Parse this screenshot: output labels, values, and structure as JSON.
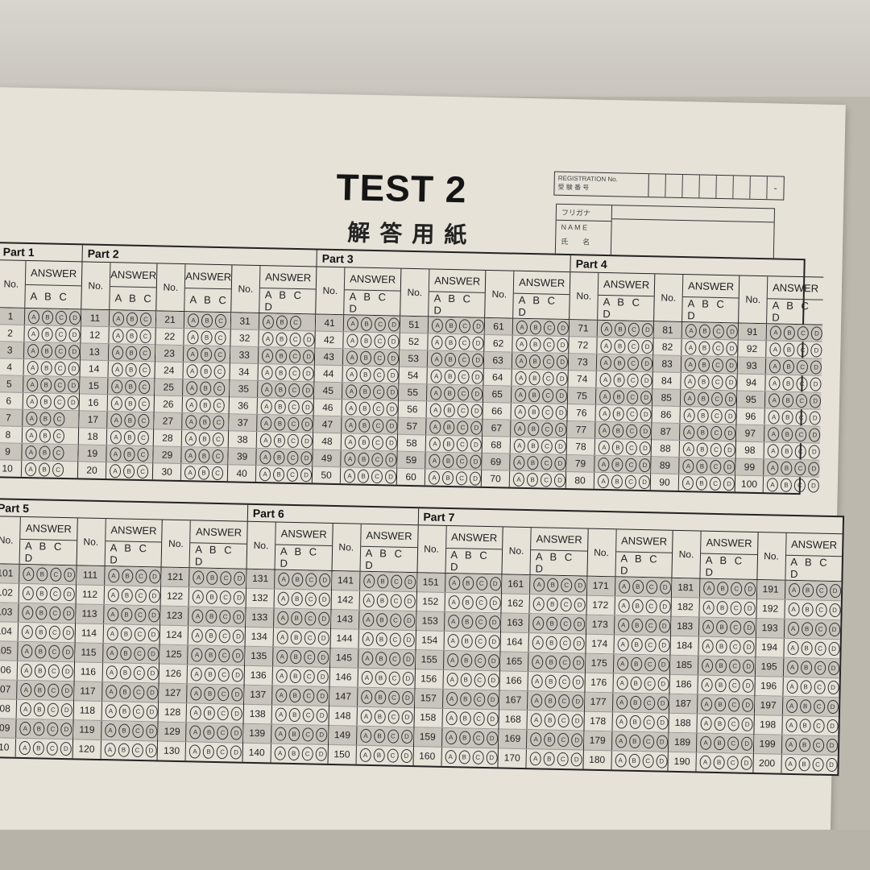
{
  "header": {
    "title": "TEST 2",
    "subtitle": "解答用紙"
  },
  "registration": {
    "label_en": "REGISTRATION No.",
    "label_jp": "受 験 番 号",
    "cells": [
      "",
      "",
      "",
      "",
      "",
      "",
      "",
      "-"
    ]
  },
  "name_box": {
    "furigana": "フリガナ",
    "name_en": "N A M E",
    "name_jp": "氏　　名"
  },
  "labels": {
    "no": "No.",
    "answer": "ANSWER"
  },
  "choice_rules": [
    {
      "from": 1,
      "to": 6,
      "choices": [
        "A",
        "B",
        "C",
        "D"
      ]
    },
    {
      "from": 7,
      "to": 31,
      "choices": [
        "A",
        "B",
        "C"
      ]
    },
    {
      "from": 32,
      "to": 200,
      "choices": [
        "A",
        "B",
        "C",
        "D"
      ]
    }
  ],
  "sections": [
    {
      "parts": [
        {
          "label": "Part 1",
          "columns": 1
        },
        {
          "label": "Part 2",
          "columns": 3
        },
        {
          "label": "Part 3",
          "columns": 3
        },
        {
          "label": "Part 4",
          "columns": 3
        }
      ],
      "first": 1,
      "columns": 10,
      "rows": 10
    },
    {
      "parts": [
        {
          "label": "Part 5",
          "columns": 3
        },
        {
          "label": "Part 6",
          "columns": 2
        },
        {
          "label": "Part 7",
          "columns": 5
        }
      ],
      "first": 101,
      "columns": 10,
      "rows": 10
    }
  ]
}
